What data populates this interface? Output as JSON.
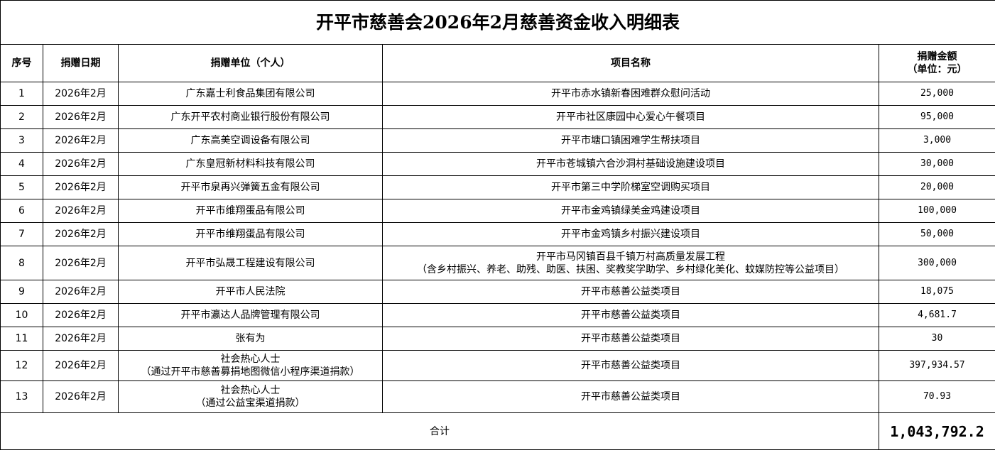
{
  "title": "开平市慈善会2026年2月慈善资金收入明细表",
  "headers": {
    "no": "序号",
    "date": "捐赠日期",
    "donor": "捐赠单位（个人）",
    "project": "项目名称",
    "amount_line1": "捐赠金额",
    "amount_line2": "（单位：元）"
  },
  "rows": [
    {
      "no": "1",
      "date": "2026年2月",
      "donor": [
        "广东嘉士利食品集团有限公司"
      ],
      "project": [
        "开平市赤水镇新春困难群众慰问活动"
      ],
      "amount": "25,000"
    },
    {
      "no": "2",
      "date": "2026年2月",
      "donor": [
        "广东开平农村商业银行股份有限公司"
      ],
      "project": [
        "开平市社区康园中心爱心午餐项目"
      ],
      "amount": "95,000"
    },
    {
      "no": "3",
      "date": "2026年2月",
      "donor": [
        "广东高美空调设备有限公司"
      ],
      "project": [
        "开平市塘口镇困难学生帮扶项目"
      ],
      "amount": "3,000"
    },
    {
      "no": "4",
      "date": "2026年2月",
      "donor": [
        "广东皇冠新材料科技有限公司"
      ],
      "project": [
        "开平市苍城镇六合沙洞村基础设施建设项目"
      ],
      "amount": "30,000"
    },
    {
      "no": "5",
      "date": "2026年2月",
      "donor": [
        "开平市泉再兴弹簧五金有限公司"
      ],
      "project": [
        "开平市第三中学阶梯室空调购买项目"
      ],
      "amount": "20,000"
    },
    {
      "no": "6",
      "date": "2026年2月",
      "donor": [
        "开平市维翔蛋品有限公司"
      ],
      "project": [
        "开平市金鸡镇绿美金鸡建设项目"
      ],
      "amount": "100,000"
    },
    {
      "no": "7",
      "date": "2026年2月",
      "donor": [
        "开平市维翔蛋品有限公司"
      ],
      "project": [
        "开平市金鸡镇乡村振兴建设项目"
      ],
      "amount": "50,000"
    },
    {
      "no": "8",
      "date": "2026年2月",
      "donor": [
        "开平市弘晟工程建设有限公司"
      ],
      "project": [
        "开平市马冈镇百县千镇万村高质量发展工程",
        "（含乡村振兴、养老、助残、助医、扶困、奖教奖学助学、乡村绿化美化、蚊媒防控等公益项目）"
      ],
      "amount": "300,000"
    },
    {
      "no": "9",
      "date": "2026年2月",
      "donor": [
        "开平市人民法院"
      ],
      "project": [
        "开平市慈善公益类项目"
      ],
      "amount": "18,075"
    },
    {
      "no": "10",
      "date": "2026年2月",
      "donor": [
        "开平市瀛达人品牌管理有限公司"
      ],
      "project": [
        "开平市慈善公益类项目"
      ],
      "amount": "4,681.7"
    },
    {
      "no": "11",
      "date": "2026年2月",
      "donor": [
        "张有为"
      ],
      "project": [
        "开平市慈善公益类项目"
      ],
      "amount": "30"
    },
    {
      "no": "12",
      "date": "2026年2月",
      "donor": [
        "社会热心人士",
        "（通过开平市慈善募捐地图微信小程序渠道捐款）"
      ],
      "project": [
        "开平市慈善公益类项目"
      ],
      "amount": "397,934.57"
    },
    {
      "no": "13",
      "date": "2026年2月",
      "donor": [
        "社会热心人士",
        "（通过公益宝渠道捐款）"
      ],
      "project": [
        "开平市慈善公益类项目"
      ],
      "amount": "70.93"
    }
  ],
  "total": {
    "label": "合计",
    "amount": "1,043,792.2"
  }
}
